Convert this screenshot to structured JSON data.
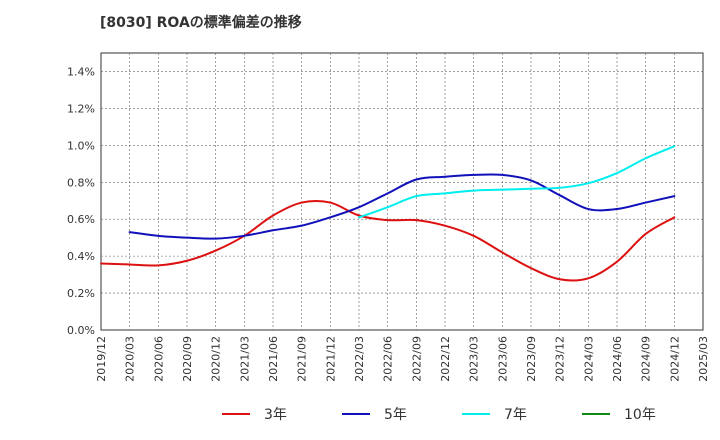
{
  "chart_data": {
    "type": "line",
    "title": "[8030]  ROAの標準偏差の推移",
    "xlabel": "",
    "ylabel": "",
    "ylim": [
      0,
      1.5
    ],
    "y_unit": "%",
    "y_ticks": [
      "0.0%",
      "0.2%",
      "0.4%",
      "0.6%",
      "0.8%",
      "1.0%",
      "1.2%",
      "1.4%"
    ],
    "y_tick_values": [
      0,
      0.2,
      0.4,
      0.6,
      0.8,
      1.0,
      1.2,
      1.4
    ],
    "x_ticks": [
      "2019/12",
      "2020/03",
      "2020/06",
      "2020/09",
      "2020/12",
      "2021/03",
      "2021/06",
      "2021/09",
      "2021/12",
      "2022/03",
      "2022/06",
      "2022/09",
      "2022/12",
      "2023/03",
      "2023/06",
      "2023/09",
      "2023/12",
      "2024/03",
      "2024/06",
      "2024/09",
      "2024/12",
      "2025/03"
    ],
    "grid": true,
    "legend_position": "bottom",
    "series": [
      {
        "name": "3年",
        "color": "#dd1111",
        "values": [
          0.36,
          0.355,
          0.35,
          0.375,
          0.43,
          0.51,
          0.62,
          0.69,
          0.69,
          0.62,
          0.595,
          0.595,
          0.565,
          0.51,
          0.42,
          0.335,
          0.275,
          0.28,
          0.37,
          0.52,
          0.61
        ]
      },
      {
        "name": "5年",
        "color": "#1111bb",
        "values": [
          null,
          0.53,
          0.51,
          0.5,
          0.495,
          0.51,
          0.54,
          0.565,
          0.61,
          0.665,
          0.74,
          0.815,
          0.83,
          0.84,
          0.84,
          0.81,
          0.73,
          0.655,
          0.655,
          0.69,
          0.725
        ]
      },
      {
        "name": "7年",
        "color": "#00eeee",
        "values": [
          null,
          null,
          null,
          null,
          null,
          null,
          null,
          null,
          null,
          0.61,
          0.665,
          0.725,
          0.74,
          0.755,
          0.76,
          0.765,
          0.77,
          0.795,
          0.85,
          0.93,
          0.995
        ]
      },
      {
        "name": "10年",
        "color": "#118811",
        "values": [
          null,
          null,
          null,
          null,
          null,
          null,
          null,
          null,
          null,
          null,
          null,
          null,
          null,
          null,
          null,
          null,
          null,
          null,
          null,
          null,
          null
        ]
      }
    ]
  }
}
